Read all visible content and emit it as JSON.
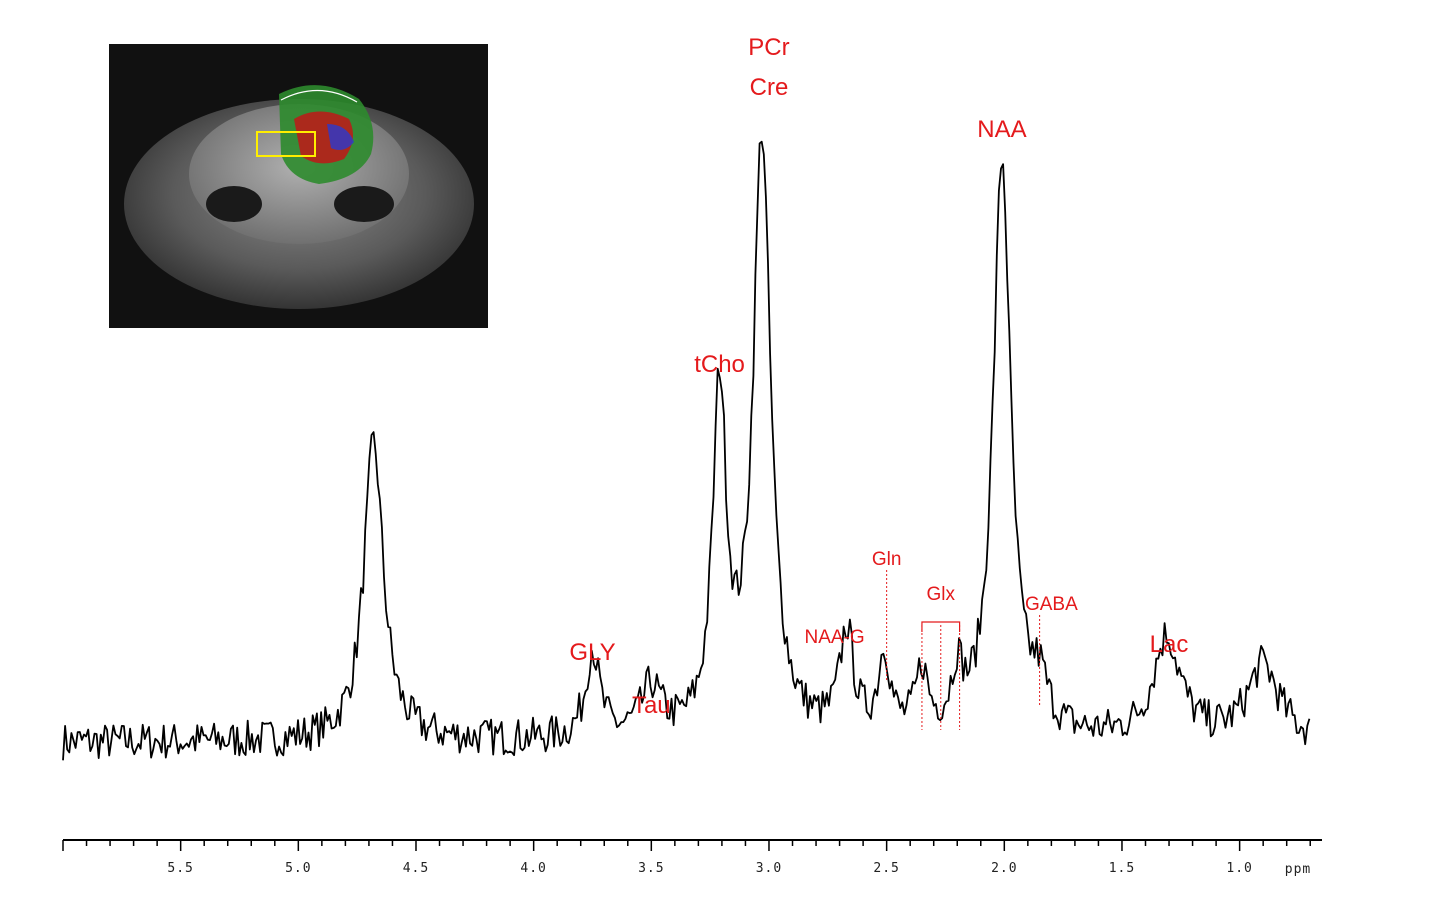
{
  "chart_data": {
    "type": "line",
    "x_unit_label": "ppm",
    "xlim": [
      6.0,
      0.65
    ],
    "x_reversed": true,
    "grid": false,
    "legend": "none",
    "x_ticks": [
      5.5,
      5.0,
      4.5,
      4.0,
      3.5,
      3.0,
      2.5,
      2.0,
      1.5,
      1.0
    ],
    "x_tick_labels": [
      "5.5",
      "5.0",
      "4.5",
      "4.0",
      "3.5",
      "3.0",
      "2.5",
      "2.0",
      "1.5",
      "1.0"
    ],
    "spectrum": {
      "color": "#000000",
      "baseline": 0.07,
      "peaks": [
        {
          "ppm": 4.68,
          "height": 0.44,
          "width": 0.05
        },
        {
          "ppm": 3.75,
          "height": 0.13,
          "width": 0.035
        },
        {
          "ppm": 3.5,
          "height": 0.07,
          "width": 0.05
        },
        {
          "ppm": 3.21,
          "height": 0.5,
          "width": 0.035
        },
        {
          "ppm": 3.03,
          "height": 0.88,
          "width": 0.045
        },
        {
          "ppm": 2.67,
          "height": 0.15,
          "width": 0.035
        },
        {
          "ppm": 2.51,
          "height": 0.12,
          "width": 0.03
        },
        {
          "ppm": 2.35,
          "height": 0.09,
          "width": 0.03
        },
        {
          "ppm": 2.2,
          "height": 0.08,
          "width": 0.03
        },
        {
          "ppm": 2.01,
          "height": 0.85,
          "width": 0.045
        },
        {
          "ppm": 1.85,
          "height": 0.06,
          "width": 0.04
        },
        {
          "ppm": 1.31,
          "height": 0.15,
          "width": 0.07
        },
        {
          "ppm": 0.9,
          "height": 0.11,
          "width": 0.08
        }
      ]
    },
    "annotations": [
      {
        "text": "PCr",
        "ppm": 3.0,
        "size": "large"
      },
      {
        "text": "Cre",
        "ppm": 3.0,
        "size": "large"
      },
      {
        "text": "NAA",
        "ppm": 2.01,
        "size": "large"
      },
      {
        "text": "tCho",
        "ppm": 3.21,
        "size": "large"
      },
      {
        "text": "GLY",
        "ppm": 3.75,
        "size": "large"
      },
      {
        "text": "Tau",
        "ppm": 3.5,
        "size": "large"
      },
      {
        "text": "Lac",
        "ppm": 1.3,
        "size": "large"
      },
      {
        "text": "NAA-G",
        "ppm": 2.7,
        "size": "small"
      },
      {
        "text": "Gln",
        "ppm": 2.5,
        "size": "small"
      },
      {
        "text": "Glx",
        "ppm": 2.27,
        "size": "small"
      },
      {
        "text": "GABA",
        "ppm": 1.8,
        "size": "small"
      }
    ],
    "marker_lines_ppm": {
      "Gln": [
        2.5
      ],
      "Glx": [
        2.35,
        2.27,
        2.19
      ],
      "GABA": [
        1.85
      ]
    },
    "annotation_color": "#e41a1c"
  },
  "inset": {
    "roi_color": "#ffee00"
  }
}
